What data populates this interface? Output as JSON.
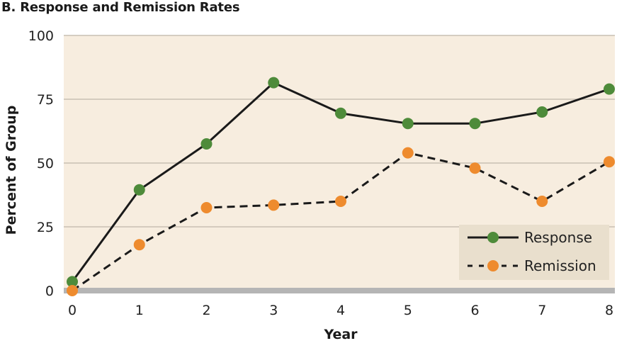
{
  "chart_data": {
    "type": "line",
    "title": "B. Response and Remission Rates",
    "xlabel": "Year",
    "ylabel": "Percent of Group",
    "x": [
      0,
      1,
      2,
      3,
      4,
      5,
      6,
      7,
      8
    ],
    "xlim": [
      0,
      8
    ],
    "ylim": [
      0,
      100
    ],
    "yticks": [
      0,
      25,
      50,
      75,
      100
    ],
    "grid": true,
    "legend_position": "bottom-right",
    "colors": {
      "plot_background": "#f7eddf",
      "gridline": "#c8c0b4",
      "baseline": "#b5b5b5",
      "legend_background": "#e9dfcd",
      "line": "#1a1a1a"
    },
    "series": [
      {
        "name": "Response",
        "values": [
          3.5,
          39.5,
          57.5,
          81.5,
          69.5,
          65.5,
          65.5,
          70,
          79
        ],
        "color": "#4e8b3a",
        "line_style": "solid"
      },
      {
        "name": "Remission",
        "values": [
          0,
          18,
          32.5,
          33.5,
          35,
          54,
          48,
          35,
          50.5
        ],
        "color": "#ee8b2e",
        "line_style": "dashed"
      }
    ]
  }
}
